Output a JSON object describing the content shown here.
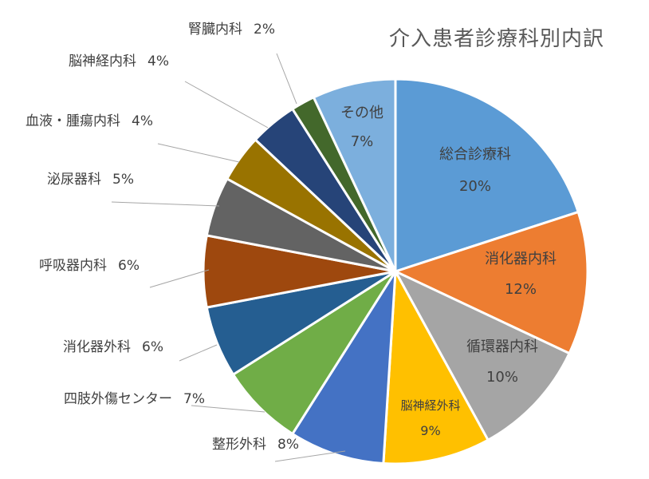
{
  "chart_data": {
    "type": "pie",
    "title": "介入患者診療科別内訳",
    "slices": [
      {
        "label": "総合診療科",
        "value": 20,
        "display": "20%",
        "color": "#5B9BD5"
      },
      {
        "label": "消化器内科",
        "value": 12,
        "display": "12%",
        "color": "#ED7D31"
      },
      {
        "label": "循環器内科",
        "value": 10,
        "display": "10%",
        "color": "#A5A5A5"
      },
      {
        "label": "脳神経外科",
        "value": 9,
        "display": "9%",
        "color": "#FFC000"
      },
      {
        "label": "整形外科",
        "value": 8,
        "display": "8%",
        "color": "#4472C4"
      },
      {
        "label": "四肢外傷センター",
        "value": 7,
        "display": "7%",
        "color": "#70AD47"
      },
      {
        "label": "消化器外科",
        "value": 6,
        "display": "6%",
        "color": "#255E91"
      },
      {
        "label": "呼吸器内科",
        "value": 6,
        "display": "6%",
        "color": "#9E480E"
      },
      {
        "label": "泌尿器科",
        "value": 5,
        "display": "5%",
        "color": "#636363"
      },
      {
        "label": "血液・腫瘍内科",
        "value": 4,
        "display": "4%",
        "color": "#997300"
      },
      {
        "label": "脳神経内科",
        "value": 4,
        "display": "4%",
        "color": "#264478"
      },
      {
        "label": "腎臓内科",
        "value": 2,
        "display": "2%",
        "color": "#43682B"
      },
      {
        "label": "その他",
        "value": 7,
        "display": "7%",
        "color": "#7CAFDD"
      }
    ]
  }
}
